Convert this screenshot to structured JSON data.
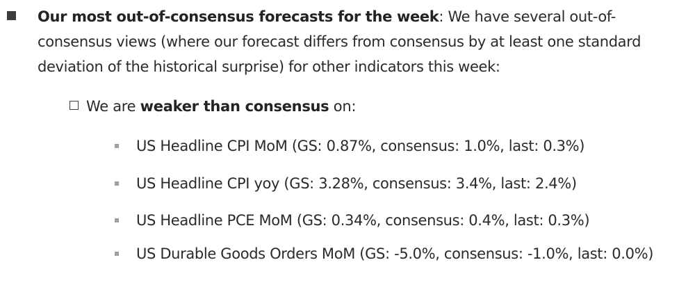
{
  "main_item": {
    "lead": "Our most out-of-consensus forecasts for the week",
    "text": ": We have several out-of-consensus views (where our forecast differs from consensus by at least one standard deviation of the historical surprise) for other indicators this week:"
  },
  "sub_item": {
    "prefix": "We are ",
    "emphasis": "weaker than consensus",
    "suffix": " on:"
  },
  "indicators": [
    "US Headline CPI MoM (GS: 0.87%, consensus: 1.0%, last: 0.3%)",
    "US Headline CPI yoy (GS: 3.28%, consensus: 3.4%, last: 2.4%)",
    "US Headline PCE MoM (GS: 0.34%, consensus: 0.4%, last: 0.3%)",
    "US Durable Goods Orders MoM (GS: -5.0%, consensus: -1.0%, last: 0.0%)"
  ]
}
